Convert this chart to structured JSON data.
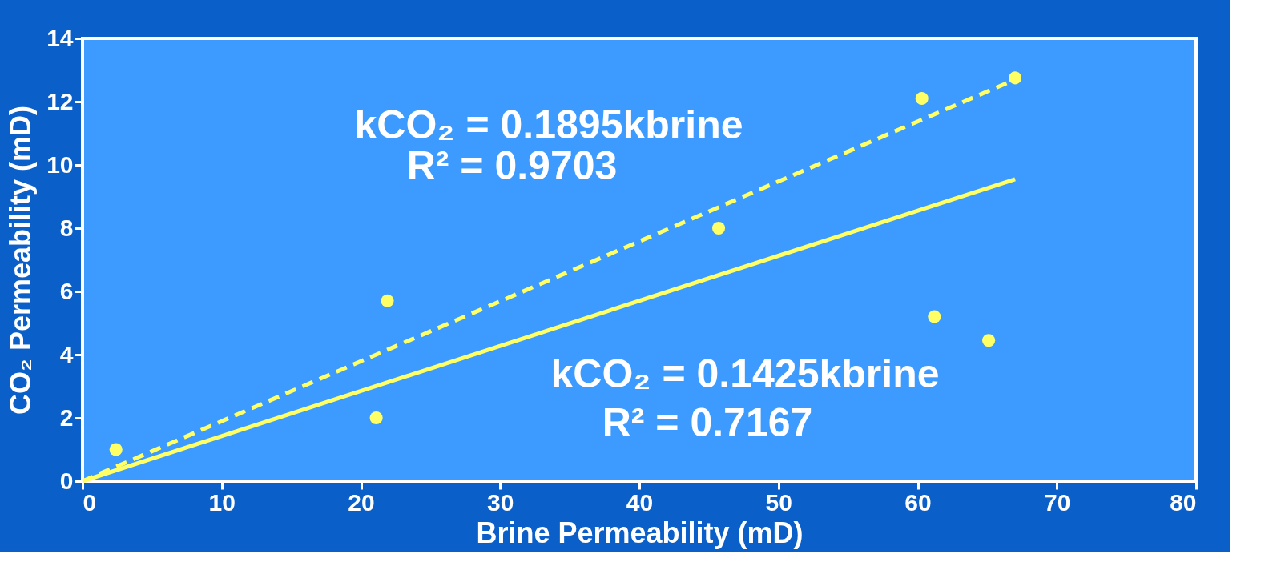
{
  "chart_data": {
    "type": "scatter",
    "xlabel": "Brine Permeability (mD)",
    "ylabel": "CO₂ Permeability (mD)",
    "xlim": [
      0,
      80
    ],
    "xticks": [
      0,
      10,
      20,
      30,
      40,
      50,
      60,
      70,
      80
    ],
    "ylim": [
      0,
      14
    ],
    "yticks": [
      0,
      2,
      4,
      6,
      8,
      10,
      12,
      14
    ],
    "grid": false,
    "series": [
      {
        "color": "#ffff66",
        "marker": "circle",
        "x": [
          2.4,
          21.1,
          21.9,
          45.7,
          60.3,
          67.0,
          61.2,
          65.1
        ],
        "values": [
          1.0,
          2.0,
          5.7,
          8.0,
          12.1,
          12.75,
          5.2,
          4.45
        ]
      },
      {
        "type": "line",
        "color": "#ffff66",
        "line_style": "dashed",
        "x": [
          0,
          67
        ],
        "values": [
          0,
          12.7
        ]
      },
      {
        "type": "line",
        "color": "#ffff66",
        "line_style": "solid",
        "x": [
          0,
          67
        ],
        "values": [
          0,
          9.55
        ]
      }
    ],
    "annotations": [
      "kCO₂ = 0.1895kbrine",
      "R² = 0.9703",
      "kCO₂ = 0.1425kbrine",
      "R² = 0.7167"
    ]
  }
}
